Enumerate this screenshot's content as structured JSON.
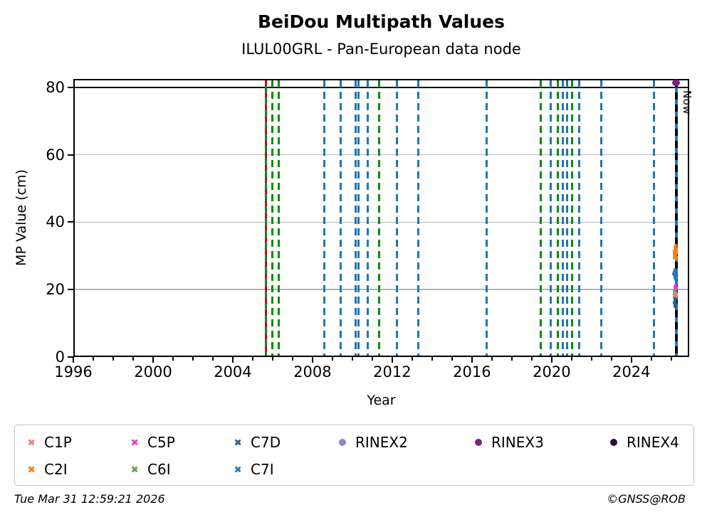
{
  "page": {
    "footer_left": "Tue Mar 31 12:59:21 2026",
    "footer_right": "©GNSS@ROB"
  },
  "chart_data": {
    "type": "scatter",
    "title": "BeiDou Multipath Values",
    "subtitle": "ILUL00GRL - Pan-European data node",
    "xlabel": "Year",
    "ylabel": "MP Value (cm)",
    "xlim": [
      1996,
      2026.9
    ],
    "ylim": [
      0,
      82.5
    ],
    "x_major_ticks": [
      1996,
      2000,
      2004,
      2008,
      2012,
      2016,
      2020,
      2024
    ],
    "x_minor_tick_step": 1,
    "y_major_ticks": [
      0,
      20,
      40,
      60,
      80
    ],
    "grid_y_values": [
      20,
      40,
      60
    ],
    "solid_line_y": 80,
    "grid_on": true,
    "legend_position": "below",
    "now_marker": {
      "year": 2026.25,
      "label": "Now",
      "line_colors": [
        "#0a0a0a",
        "#1f77b4"
      ]
    },
    "event_lines": [
      {
        "year": 2005.65,
        "style": "dashed",
        "colors": [
          "#d40000",
          "#0e8a0e"
        ]
      },
      {
        "year": 2006.0,
        "style": "dashed",
        "colors": [
          "#0e8a0e"
        ]
      },
      {
        "year": 2006.32,
        "style": "dashed",
        "colors": [
          "#0e8a0e"
        ]
      },
      {
        "year": 2008.6,
        "style": "dashed",
        "colors": [
          "#1f77b4"
        ]
      },
      {
        "year": 2009.4,
        "style": "dashed",
        "colors": [
          "#1f77b4"
        ]
      },
      {
        "year": 2010.15,
        "style": "dashed",
        "colors": [
          "#1f77b4"
        ]
      },
      {
        "year": 2010.3,
        "style": "dashed",
        "colors": [
          "#1f77b4"
        ]
      },
      {
        "year": 2010.78,
        "style": "dashed",
        "colors": [
          "#1f77b4"
        ]
      },
      {
        "year": 2011.35,
        "style": "dashed",
        "colors": [
          "#0e8a0e"
        ]
      },
      {
        "year": 2012.25,
        "style": "dashed",
        "colors": [
          "#1f77b4"
        ]
      },
      {
        "year": 2013.3,
        "style": "dashed",
        "colors": [
          "#1f77b4"
        ]
      },
      {
        "year": 2016.72,
        "style": "dashed",
        "colors": [
          "#1f77b4"
        ]
      },
      {
        "year": 2019.45,
        "style": "dashed",
        "colors": [
          "#0e8a0e"
        ]
      },
      {
        "year": 2019.95,
        "style": "dashed",
        "colors": [
          "#1f77b4"
        ]
      },
      {
        "year": 2020.32,
        "style": "dashed",
        "colors": [
          "#0e8a0e"
        ]
      },
      {
        "year": 2020.56,
        "style": "dashed",
        "colors": [
          "#1f77b4"
        ]
      },
      {
        "year": 2020.79,
        "style": "dashed",
        "colors": [
          "#1f77b4"
        ]
      },
      {
        "year": 2021.02,
        "style": "dashed",
        "colors": [
          "#0e8a0e"
        ]
      },
      {
        "year": 2021.37,
        "style": "dashed",
        "colors": [
          "#1f77b4"
        ]
      },
      {
        "year": 2022.5,
        "style": "dashed",
        "colors": [
          "#1f77b4"
        ]
      },
      {
        "year": 2025.12,
        "style": "dashed",
        "colors": [
          "#1f77b4"
        ]
      }
    ],
    "clusters": [
      {
        "series": "C2I",
        "color": "#ff7f0e",
        "x_center": 2026.2,
        "y_min": 28.3,
        "y_max": 33.2,
        "n": 55
      },
      {
        "series": "C7I",
        "color": "#2b7bbf",
        "x_center": 2026.2,
        "y_min": 22.3,
        "y_max": 26.6,
        "n": 55
      },
      {
        "series": "C5P",
        "color": "#e83ae0",
        "x_center": 2026.2,
        "y_min": 19.9,
        "y_max": 21.6,
        "n": 22
      },
      {
        "series": "C6I",
        "color": "#6da24f",
        "x_center": 2026.2,
        "y_min": 16.9,
        "y_max": 20.1,
        "n": 40
      },
      {
        "series": "C1P",
        "color": "#f08080",
        "x_center": 2026.2,
        "y_min": 17.2,
        "y_max": 19.3,
        "n": 12
      },
      {
        "series": "C7D",
        "color": "#2a628f",
        "x_center": 2026.2,
        "y_min": 14.3,
        "y_max": 17.6,
        "n": 45
      }
    ],
    "single_points": [
      {
        "series": "RINEX3",
        "color": "#7a2182",
        "x": 2026.25,
        "y": 81.3
      }
    ]
  },
  "legend": {
    "items": [
      {
        "label": "C1P",
        "color": "#f08080",
        "marker": "x",
        "row": 0,
        "col": 0
      },
      {
        "label": "C5P",
        "color": "#e83ae0",
        "marker": "x",
        "row": 0,
        "col": 1
      },
      {
        "label": "C7D",
        "color": "#2a628f",
        "marker": "x",
        "row": 0,
        "col": 2
      },
      {
        "label": "RINEX2",
        "color": "#8d88c4",
        "marker": "dot",
        "row": 0,
        "col": 3
      },
      {
        "label": "RINEX3",
        "color": "#7a2182",
        "marker": "dot",
        "row": 0,
        "col": 4
      },
      {
        "label": "RINEX4",
        "color": "#330a3d",
        "marker": "dot",
        "row": 0,
        "col": 5
      },
      {
        "label": "C2I",
        "color": "#ff7f0e",
        "marker": "x",
        "row": 1,
        "col": 0
      },
      {
        "label": "C6I",
        "color": "#6da24f",
        "marker": "x",
        "row": 1,
        "col": 1
      },
      {
        "label": "C7I",
        "color": "#2b7bbf",
        "marker": "x",
        "row": 1,
        "col": 2
      }
    ]
  }
}
